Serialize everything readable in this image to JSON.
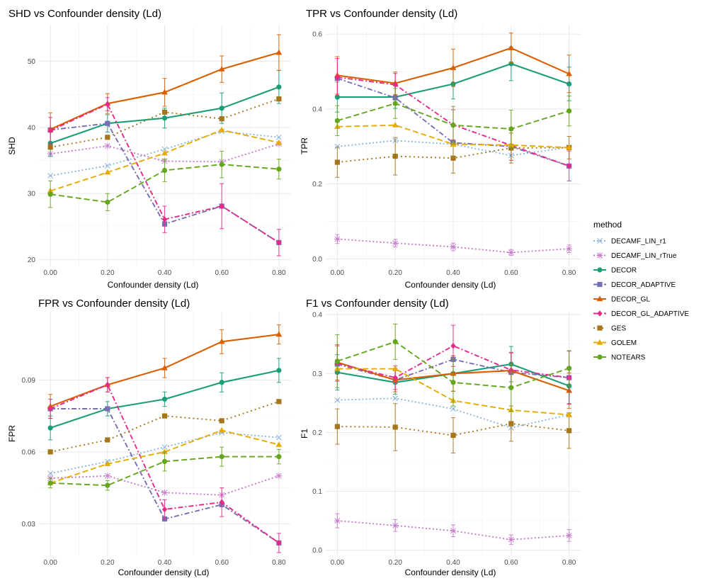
{
  "legend": {
    "title": "method",
    "methods": [
      {
        "name": "DECAMF_LIN_r1",
        "color": "#8DB6DA",
        "dash": "2,3",
        "marker": "x"
      },
      {
        "name": "DECAMF_LIN_rTrue",
        "color": "#C77CCB",
        "dash": "2,3",
        "marker": "asterisk"
      },
      {
        "name": "DECOR",
        "color": "#1B9E77",
        "dash": "",
        "marker": "circle"
      },
      {
        "name": "DECOR_ADAPTIVE",
        "color": "#7570B3",
        "dash": "7,3,2,3",
        "marker": "square"
      },
      {
        "name": "DECOR_GL",
        "color": "#D95F02",
        "dash": "",
        "marker": "triangle"
      },
      {
        "name": "DECOR_GL_ADAPTIVE",
        "color": "#E7298A",
        "dash": "7,3,2,3",
        "marker": "diamond"
      },
      {
        "name": "GES",
        "color": "#A6761D",
        "dash": "2,4",
        "marker": "square"
      },
      {
        "name": "GOLEM",
        "color": "#E6AB02",
        "dash": "8,4",
        "marker": "triangle"
      },
      {
        "name": "NOTEARS",
        "color": "#66A61E",
        "dash": "8,4",
        "marker": "circle"
      }
    ]
  },
  "chart_data": [
    {
      "type": "line",
      "title": "SHD vs Confounder density (Ld)",
      "xlabel": "Confounder density (Ld)",
      "ylabel": "SHD",
      "x": [
        0.0,
        0.2,
        0.4,
        0.6,
        0.8
      ],
      "xticks": [
        "0.00",
        "0.20",
        "0.40",
        "0.60",
        "0.80"
      ],
      "yticks": [
        20,
        30,
        40,
        50
      ],
      "yticklabels": [
        "20",
        "30",
        "40",
        "50"
      ],
      "ylim": [
        19,
        55.5
      ],
      "series": [
        {
          "name": "DECAMF_LIN_r1",
          "values": [
            32.7,
            34.2,
            36.7,
            39.4,
            38.5
          ]
        },
        {
          "name": "DECAMF_LIN_rTrue",
          "values": [
            36.0,
            37.2,
            34.9,
            34.8,
            37.5
          ]
        },
        {
          "name": "DECOR",
          "values": [
            37.6,
            40.6,
            41.4,
            42.9,
            46.1
          ],
          "err": [
            2.0,
            1.3,
            1.5,
            2.3,
            2.5
          ]
        },
        {
          "name": "DECOR_ADAPTIVE",
          "values": [
            39.6,
            40.6,
            25.4,
            28.1,
            22.6
          ]
        },
        {
          "name": "DECOR_GL",
          "values": [
            39.7,
            43.6,
            45.3,
            48.8,
            51.3
          ],
          "err": [
            2.5,
            1.5,
            2.1,
            2.0,
            2.7
          ]
        },
        {
          "name": "DECOR_GL_ADAPTIVE",
          "values": [
            39.5,
            43.5,
            26.1,
            28.1,
            22.6
          ],
          "err": [
            2.0,
            1.0,
            2.0,
            3.4,
            2.0
          ]
        },
        {
          "name": "GES",
          "values": [
            37.0,
            38.5,
            42.3,
            41.3,
            44.3
          ]
        },
        {
          "name": "GOLEM",
          "values": [
            30.4,
            33.2,
            36.1,
            39.6,
            37.7
          ]
        },
        {
          "name": "NOTEARS",
          "values": [
            29.9,
            28.7,
            33.5,
            34.4,
            33.7
          ],
          "err": [
            2.0,
            1.3,
            1.7,
            2.0,
            1.5
          ]
        }
      ]
    },
    {
      "type": "line",
      "title": "TPR vs Confounder density (Ld)",
      "xlabel": "Confounder density (Ld)",
      "ylabel": "TPR",
      "x": [
        0.0,
        0.2,
        0.4,
        0.6,
        0.8
      ],
      "xticks": [
        "0.00",
        "0.20",
        "0.40",
        "0.60",
        "0.80"
      ],
      "yticks": [
        0.0,
        0.2,
        0.4,
        0.6
      ],
      "yticklabels": [
        "0.0",
        "0.2",
        "0.4",
        "0.6"
      ],
      "ylim": [
        -0.02,
        0.625
      ],
      "series": [
        {
          "name": "DECAMF_LIN_r1",
          "values": [
            0.3,
            0.316,
            0.306,
            0.276,
            0.298
          ]
        },
        {
          "name": "DECAMF_LIN_rTrue",
          "values": [
            0.053,
            0.042,
            0.032,
            0.017,
            0.027
          ],
          "err": [
            0.012,
            0.01,
            0.01,
            0.008,
            0.01
          ]
        },
        {
          "name": "DECOR",
          "values": [
            0.432,
            0.432,
            0.467,
            0.521,
            0.467
          ],
          "err": [
            0.04,
            0.03,
            0.04,
            0.045,
            0.045
          ]
        },
        {
          "name": "DECOR_ADAPTIVE",
          "values": [
            0.482,
            0.43,
            0.31,
            0.3,
            0.248
          ]
        },
        {
          "name": "DECOR_GL",
          "values": [
            0.49,
            0.469,
            0.51,
            0.563,
            0.494
          ],
          "err": [
            0.05,
            0.03,
            0.05,
            0.04,
            0.05
          ]
        },
        {
          "name": "DECOR_GL_ADAPTIVE",
          "values": [
            0.485,
            0.465,
            0.358,
            0.303,
            0.248
          ],
          "err": [
            0.05,
            0.03,
            0.04,
            0.04,
            0.04
          ]
        },
        {
          "name": "GES",
          "values": [
            0.258,
            0.274,
            0.269,
            0.296,
            0.297
          ],
          "err": [
            0.04,
            0.05,
            0.04,
            0.04,
            0.03
          ]
        },
        {
          "name": "GOLEM",
          "values": [
            0.353,
            0.357,
            0.306,
            0.304,
            0.297
          ]
        },
        {
          "name": "NOTEARS",
          "values": [
            0.369,
            0.415,
            0.357,
            0.347,
            0.395
          ],
          "err": [
            0.04,
            0.04,
            0.05,
            0.05,
            0.04
          ]
        }
      ]
    },
    {
      "type": "line",
      "title": "FPR vs Confounder density (Ld)",
      "xlabel": "Confounder density (Ld)",
      "ylabel": "FPR",
      "x": [
        0.0,
        0.2,
        0.4,
        0.6,
        0.8
      ],
      "xticks": [
        "0.00",
        "0.20",
        "0.40",
        "0.60",
        "0.80"
      ],
      "yticks": [
        0.03,
        0.06,
        0.09
      ],
      "yticklabels": [
        "0.03",
        "0.06",
        "0.09"
      ],
      "ylim": [
        0.0165,
        0.1185
      ],
      "series": [
        {
          "name": "DECAMF_LIN_r1",
          "values": [
            0.051,
            0.056,
            0.062,
            0.068,
            0.066
          ]
        },
        {
          "name": "DECAMF_LIN_rTrue",
          "values": [
            0.049,
            0.05,
            0.043,
            0.042,
            0.05
          ]
        },
        {
          "name": "DECOR",
          "values": [
            0.07,
            0.078,
            0.082,
            0.089,
            0.094
          ],
          "err": [
            0.005,
            0.003,
            0.003,
            0.004,
            0.005
          ]
        },
        {
          "name": "DECOR_ADAPTIVE",
          "values": [
            0.078,
            0.078,
            0.032,
            0.038,
            0.022
          ]
        },
        {
          "name": "DECOR_GL",
          "values": [
            0.079,
            0.088,
            0.095,
            0.106,
            0.109
          ],
          "err": [
            0.005,
            0.003,
            0.004,
            0.005,
            0.004
          ]
        },
        {
          "name": "DECOR_GL_ADAPTIVE",
          "values": [
            0.078,
            0.088,
            0.036,
            0.039,
            0.022
          ],
          "err": [
            0.004,
            0.003,
            0.004,
            0.006,
            0.004
          ]
        },
        {
          "name": "GES",
          "values": [
            0.06,
            0.065,
            0.075,
            0.073,
            0.081
          ]
        },
        {
          "name": "GOLEM",
          "values": [
            0.047,
            0.055,
            0.06,
            0.069,
            0.063
          ]
        },
        {
          "name": "NOTEARS",
          "values": [
            0.047,
            0.046,
            0.056,
            0.058,
            0.058
          ],
          "err": [
            0.002,
            0.002,
            0.004,
            0.004,
            0.003
          ]
        }
      ]
    },
    {
      "type": "line",
      "title": "F1 vs Confounder density (Ld)",
      "xlabel": "Confounder density (Ld)",
      "ylabel": "F1",
      "x": [
        0.0,
        0.2,
        0.4,
        0.6,
        0.8
      ],
      "xticks": [
        "0.00",
        "0.20",
        "0.40",
        "0.60",
        "0.80"
      ],
      "yticks": [
        0.0,
        0.1,
        0.2,
        0.3,
        0.4
      ],
      "yticklabels": [
        "0.0",
        "0.1",
        "0.2",
        "0.3",
        "0.4"
      ],
      "ylim": [
        -0.01,
        0.405
      ],
      "series": [
        {
          "name": "DECAMF_LIN_r1",
          "values": [
            0.255,
            0.258,
            0.24,
            0.208,
            0.23
          ]
        },
        {
          "name": "DECAMF_LIN_rTrue",
          "values": [
            0.05,
            0.042,
            0.033,
            0.018,
            0.025
          ],
          "err": [
            0.012,
            0.01,
            0.01,
            0.008,
            0.01
          ]
        },
        {
          "name": "DECOR",
          "values": [
            0.302,
            0.285,
            0.3,
            0.316,
            0.279
          ],
          "err": [
            0.03,
            0.02,
            0.03,
            0.03,
            0.03
          ]
        },
        {
          "name": "DECOR_ADAPTIVE",
          "values": [
            0.316,
            0.289,
            0.324,
            0.302,
            0.293
          ]
        },
        {
          "name": "DECOR_GL",
          "values": [
            0.319,
            0.289,
            0.3,
            0.305,
            0.271
          ],
          "err": [
            0.03,
            0.02,
            0.03,
            0.03,
            0.03
          ]
        },
        {
          "name": "DECOR_GL_ADAPTIVE",
          "values": [
            0.317,
            0.293,
            0.347,
            0.306,
            0.293
          ],
          "err": [
            0.03,
            0.02,
            0.035,
            0.03,
            0.045
          ]
        },
        {
          "name": "GES",
          "values": [
            0.21,
            0.209,
            0.195,
            0.215,
            0.203
          ],
          "err": [
            0.03,
            0.04,
            0.03,
            0.03,
            0.03
          ]
        },
        {
          "name": "GOLEM",
          "values": [
            0.308,
            0.308,
            0.254,
            0.238,
            0.23
          ]
        },
        {
          "name": "NOTEARS",
          "values": [
            0.321,
            0.354,
            0.285,
            0.276,
            0.309
          ],
          "err": [
            0.045,
            0.03,
            0.04,
            0.04,
            0.03
          ]
        }
      ]
    }
  ]
}
